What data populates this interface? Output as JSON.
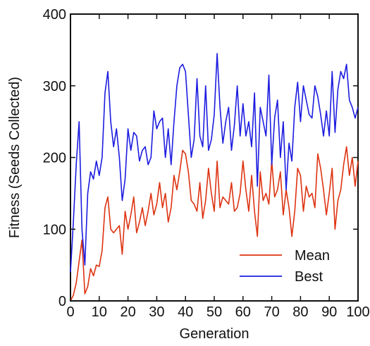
{
  "chart_data": {
    "type": "line",
    "xlabel": "Generation",
    "ylabel": "Fitness (Seeds Collected)",
    "xlim": [
      0,
      100
    ],
    "ylim": [
      0,
      400
    ],
    "xticks": [
      0,
      10,
      20,
      30,
      40,
      50,
      60,
      70,
      80,
      90,
      100
    ],
    "yticks": [
      0,
      100,
      200,
      300,
      400
    ],
    "grid": false,
    "legend": "bottom-right",
    "series": [
      {
        "name": "Mean",
        "color": "#dd3311",
        "values": [
          0,
          8,
          25,
          55,
          85,
          10,
          20,
          45,
          35,
          50,
          48,
          70,
          130,
          145,
          100,
          95,
          100,
          105,
          65,
          125,
          100,
          120,
          145,
          95,
          110,
          130,
          105,
          125,
          150,
          120,
          135,
          165,
          130,
          150,
          110,
          130,
          175,
          155,
          180,
          210,
          205,
          180,
          140,
          135,
          125,
          165,
          115,
          140,
          185,
          150,
          125,
          195,
          130,
          145,
          140,
          135,
          165,
          125,
          130,
          150,
          195,
          155,
          125,
          175,
          125,
          90,
          180,
          140,
          150,
          135,
          195,
          145,
          155,
          180,
          120,
          155,
          130,
          90,
          125,
          185,
          175,
          125,
          160,
          145,
          150,
          130,
          205,
          185,
          155,
          120,
          150,
          185,
          100,
          140,
          155,
          190,
          215,
          175,
          200,
          160,
          195
        ]
      },
      {
        "name": "Best",
        "color": "#1c1ce0",
        "values": [
          40,
          110,
          190,
          250,
          100,
          50,
          150,
          180,
          170,
          195,
          175,
          200,
          290,
          320,
          250,
          215,
          240,
          200,
          140,
          170,
          240,
          210,
          235,
          230,
          195,
          210,
          215,
          190,
          200,
          265,
          240,
          250,
          255,
          200,
          240,
          190,
          250,
          300,
          325,
          330,
          320,
          260,
          200,
          225,
          310,
          230,
          215,
          300,
          210,
          225,
          260,
          345,
          270,
          220,
          250,
          270,
          210,
          245,
          300,
          230,
          275,
          230,
          250,
          215,
          290,
          160,
          270,
          250,
          230,
          315,
          190,
          255,
          280,
          200,
          250,
          155,
          220,
          195,
          270,
          305,
          250,
          300,
          280,
          260,
          255,
          300,
          285,
          260,
          230,
          265,
          230,
          320,
          235,
          295,
          320,
          310,
          330,
          280,
          270,
          255,
          270
        ]
      }
    ]
  }
}
